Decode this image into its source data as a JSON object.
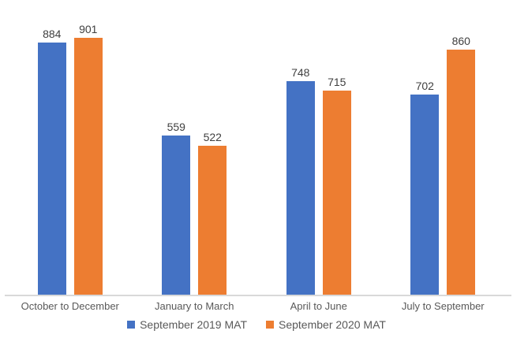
{
  "chart_data": {
    "type": "bar",
    "title": "",
    "xlabel": "",
    "ylabel": "",
    "categories": [
      "October to December",
      "January to March",
      "April to June",
      "July to September"
    ],
    "series": [
      {
        "name": "September 2019 MAT",
        "color": "#4472C4",
        "values": [
          884,
          559,
          748,
          702
        ]
      },
      {
        "name": "September 2020 MAT",
        "color": "#ED7D31",
        "values": [
          901,
          522,
          715,
          860
        ]
      }
    ],
    "ylim": [
      0,
      950
    ],
    "grid": false,
    "data_labels": true,
    "legend_position": "bottom"
  },
  "colors": {
    "background": "#ffffff",
    "axis_line": "#d9d9d9",
    "data_label_text": "#404040",
    "category_text": "#595959",
    "legend_text": "#595959"
  }
}
